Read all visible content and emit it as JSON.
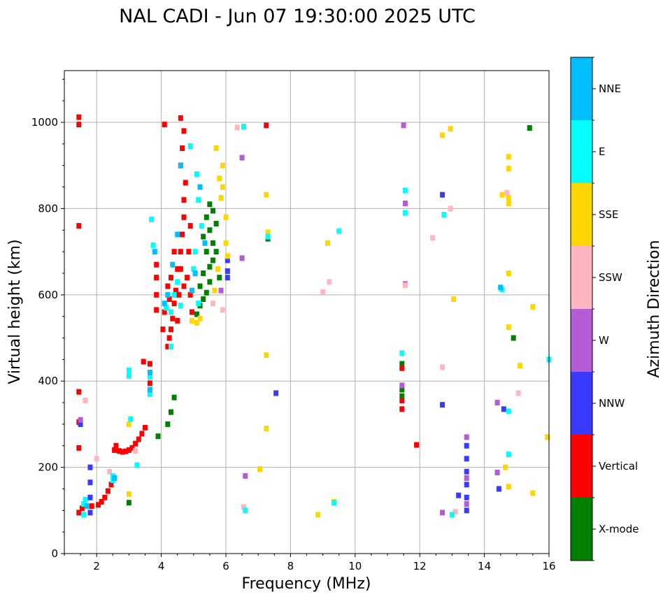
{
  "chart_data": {
    "type": "scatter",
    "title": "NAL CADI - Jun 07 19:30:00 2025 UTC",
    "xlabel": "Frequency (MHz)",
    "ylabel": "Virtual height (km)",
    "xlim": [
      1,
      16
    ],
    "ylim": [
      0,
      1120
    ],
    "xticks": [
      2,
      4,
      6,
      8,
      10,
      12,
      14,
      16
    ],
    "yticks": [
      0,
      200,
      400,
      600,
      800,
      1000
    ],
    "grid": true,
    "colorbar": {
      "label": "Azimuth Direction",
      "categories": [
        "X-mode",
        "Vertical",
        "NNW",
        "W",
        "SSW",
        "SSE",
        "E",
        "NNE"
      ],
      "colors": [
        "#008000",
        "#ff0000",
        "#3a3aff",
        "#b65bd6",
        "#ffb6c1",
        "#ffd700",
        "#00ffff",
        "#00bfff"
      ]
    },
    "series": [
      {
        "name": "X-mode",
        "points": [
          [
            3.0,
            118
          ],
          [
            3.9,
            272
          ],
          [
            4.2,
            300
          ],
          [
            4.3,
            328
          ],
          [
            4.4,
            362
          ],
          [
            5.1,
            555
          ],
          [
            5.2,
            575
          ],
          [
            5.3,
            590
          ],
          [
            5.4,
            605
          ],
          [
            5.5,
            630
          ],
          [
            5.3,
            650
          ],
          [
            5.5,
            665
          ],
          [
            5.6,
            680
          ],
          [
            5.4,
            700
          ],
          [
            5.6,
            720
          ],
          [
            5.3,
            735
          ],
          [
            5.5,
            750
          ],
          [
            5.7,
            765
          ],
          [
            5.4,
            780
          ],
          [
            5.6,
            795
          ],
          [
            5.5,
            810
          ],
          [
            5.8,
            640
          ],
          [
            5.2,
            620
          ],
          [
            5.7,
            700
          ],
          [
            7.3,
            730
          ],
          [
            11.45,
            440
          ],
          [
            11.45,
            380
          ],
          [
            11.45,
            365
          ],
          [
            14.9,
            500
          ],
          [
            15.4,
            987
          ]
        ]
      },
      {
        "name": "Vertical",
        "points": [
          [
            1.45,
            95
          ],
          [
            1.55,
            105
          ],
          [
            1.85,
            110
          ],
          [
            2.05,
            113
          ],
          [
            2.15,
            120
          ],
          [
            2.25,
            130
          ],
          [
            2.35,
            145
          ],
          [
            2.45,
            160
          ],
          [
            2.55,
            240
          ],
          [
            2.6,
            250
          ],
          [
            2.7,
            238
          ],
          [
            2.8,
            236
          ],
          [
            2.9,
            237
          ],
          [
            3.0,
            240
          ],
          [
            3.1,
            245
          ],
          [
            3.2,
            255
          ],
          [
            3.3,
            265
          ],
          [
            3.4,
            278
          ],
          [
            3.5,
            292
          ],
          [
            1.45,
            245
          ],
          [
            1.45,
            305
          ],
          [
            1.45,
            375
          ],
          [
            1.45,
            760
          ],
          [
            1.45,
            995
          ],
          [
            1.45,
            1012
          ],
          [
            3.65,
            395
          ],
          [
            3.65,
            440
          ],
          [
            3.85,
            565
          ],
          [
            3.85,
            600
          ],
          [
            3.85,
            640
          ],
          [
            3.85,
            670
          ],
          [
            4.05,
            520
          ],
          [
            4.1,
            560
          ],
          [
            4.2,
            480
          ],
          [
            4.25,
            500
          ],
          [
            4.3,
            520
          ],
          [
            4.35,
            545
          ],
          [
            4.4,
            580
          ],
          [
            4.45,
            610
          ],
          [
            4.5,
            540
          ],
          [
            4.55,
            600
          ],
          [
            4.6,
            660
          ],
          [
            4.6,
            700
          ],
          [
            4.65,
            740
          ],
          [
            4.7,
            780
          ],
          [
            4.7,
            820
          ],
          [
            4.75,
            860
          ],
          [
            4.6,
            900
          ],
          [
            4.65,
            940
          ],
          [
            4.7,
            980
          ],
          [
            4.6,
            1010
          ],
          [
            4.8,
            640
          ],
          [
            4.9,
            600
          ],
          [
            4.95,
            560
          ],
          [
            4.85,
            700
          ],
          [
            4.9,
            760
          ],
          [
            4.7,
            620
          ],
          [
            4.5,
            660
          ],
          [
            4.4,
            700
          ],
          [
            4.2,
            620
          ],
          [
            4.25,
            590
          ],
          [
            4.3,
            640
          ],
          [
            3.45,
            445
          ],
          [
            11.45,
            335
          ],
          [
            11.45,
            355
          ],
          [
            11.45,
            430
          ],
          [
            11.9,
            252
          ],
          [
            4.1,
            995
          ],
          [
            7.25,
            993
          ]
        ]
      },
      {
        "name": "NNW",
        "points": [
          [
            1.8,
            95
          ],
          [
            1.8,
            130
          ],
          [
            1.8,
            165
          ],
          [
            1.8,
            200
          ],
          [
            1.5,
            300
          ],
          [
            6.05,
            640
          ],
          [
            6.05,
            680
          ],
          [
            6.05,
            655
          ],
          [
            7.55,
            372
          ],
          [
            12.7,
            345
          ],
          [
            12.7,
            832
          ],
          [
            13.2,
            135
          ],
          [
            13.45,
            100
          ],
          [
            13.45,
            130
          ],
          [
            13.45,
            160
          ],
          [
            13.45,
            190
          ],
          [
            13.45,
            220
          ],
          [
            13.45,
            250
          ],
          [
            14.45,
            150
          ],
          [
            14.6,
            335
          ]
        ]
      },
      {
        "name": "W",
        "points": [
          [
            1.5,
            310
          ],
          [
            6.6,
            180
          ],
          [
            6.5,
            685
          ],
          [
            6.5,
            918
          ],
          [
            5.85,
            610
          ],
          [
            11.45,
            390
          ],
          [
            11.5,
            993
          ],
          [
            11.55,
            812
          ],
          [
            11.55,
            625
          ],
          [
            12.7,
            95
          ],
          [
            13.45,
            270
          ],
          [
            13.45,
            115
          ],
          [
            13.45,
            175
          ],
          [
            14.4,
            188
          ],
          [
            14.4,
            350
          ]
        ]
      },
      {
        "name": "SSW",
        "points": [
          [
            1.65,
            355
          ],
          [
            2.0,
            220
          ],
          [
            2.4,
            190
          ],
          [
            3.2,
            238
          ],
          [
            5.6,
            580
          ],
          [
            5.9,
            565
          ],
          [
            6.35,
            988
          ],
          [
            6.55,
            108
          ],
          [
            9.2,
            630
          ],
          [
            9.0,
            606
          ],
          [
            11.55,
            622
          ],
          [
            12.4,
            732
          ],
          [
            12.7,
            432
          ],
          [
            12.95,
            800
          ],
          [
            13.1,
            97
          ],
          [
            14.7,
            837
          ],
          [
            15.05,
            372
          ]
        ]
      },
      {
        "name": "SSE",
        "points": [
          [
            3.0,
            138
          ],
          [
            3.0,
            300
          ],
          [
            4.95,
            540
          ],
          [
            5.1,
            535
          ],
          [
            5.2,
            545
          ],
          [
            5.9,
            900
          ],
          [
            5.8,
            870
          ],
          [
            5.85,
            825
          ],
          [
            5.9,
            850
          ],
          [
            5.7,
            940
          ],
          [
            6.0,
            780
          ],
          [
            6.0,
            720
          ],
          [
            6.05,
            690
          ],
          [
            5.65,
            610
          ],
          [
            5.75,
            660
          ],
          [
            7.25,
            460
          ],
          [
            7.25,
            290
          ],
          [
            7.3,
            745
          ],
          [
            7.25,
            832
          ],
          [
            7.05,
            196
          ],
          [
            8.85,
            90
          ],
          [
            9.15,
            720
          ],
          [
            9.35,
            120
          ],
          [
            12.7,
            970
          ],
          [
            12.95,
            985
          ],
          [
            13.05,
            590
          ],
          [
            14.55,
            832
          ],
          [
            14.75,
            920
          ],
          [
            14.75,
            893
          ],
          [
            14.75,
            825
          ],
          [
            14.75,
            812
          ],
          [
            14.75,
            650
          ],
          [
            14.75,
            525
          ],
          [
            14.65,
            200
          ],
          [
            14.75,
            155
          ],
          [
            15.1,
            436
          ],
          [
            15.5,
            140
          ],
          [
            15.5,
            572
          ],
          [
            15.95,
            270
          ]
        ]
      },
      {
        "name": "E",
        "points": [
          [
            1.6,
            90
          ],
          [
            1.6,
            115
          ],
          [
            1.65,
            125
          ],
          [
            2.5,
            170
          ],
          [
            2.5,
            180
          ],
          [
            3.0,
            412
          ],
          [
            3.0,
            425
          ],
          [
            3.05,
            312
          ],
          [
            3.25,
            205
          ],
          [
            3.65,
            370
          ],
          [
            3.65,
            410
          ],
          [
            3.7,
            775
          ],
          [
            3.75,
            715
          ],
          [
            4.15,
            570
          ],
          [
            4.3,
            480
          ],
          [
            4.3,
            560
          ],
          [
            4.4,
            600
          ],
          [
            4.5,
            630
          ],
          [
            4.6,
            575
          ],
          [
            4.9,
            945
          ],
          [
            5.1,
            880
          ],
          [
            5.15,
            820
          ],
          [
            5.05,
            700
          ],
          [
            5.25,
            760
          ],
          [
            5.0,
            660
          ],
          [
            5.15,
            580
          ],
          [
            6.55,
            990
          ],
          [
            6.6,
            100
          ],
          [
            7.3,
            735
          ],
          [
            9.35,
            118
          ],
          [
            9.5,
            748
          ],
          [
            11.45,
            465
          ],
          [
            11.55,
            790
          ],
          [
            11.55,
            842
          ],
          [
            12.75,
            786
          ],
          [
            13.0,
            90
          ],
          [
            14.55,
            612
          ],
          [
            14.75,
            230
          ],
          [
            14.75,
            330
          ],
          [
            16.0,
            450
          ]
        ]
      },
      {
        "name": "NNE",
        "points": [
          [
            1.7,
            110
          ],
          [
            2.55,
            175
          ],
          [
            3.65,
            380
          ],
          [
            3.65,
            420
          ],
          [
            3.8,
            700
          ],
          [
            4.1,
            580
          ],
          [
            4.2,
            600
          ],
          [
            4.35,
            670
          ],
          [
            4.5,
            740
          ],
          [
            4.6,
            900
          ],
          [
            4.95,
            610
          ],
          [
            5.05,
            650
          ],
          [
            5.2,
            850
          ],
          [
            5.35,
            720
          ],
          [
            14.5,
            617
          ]
        ]
      }
    ]
  }
}
